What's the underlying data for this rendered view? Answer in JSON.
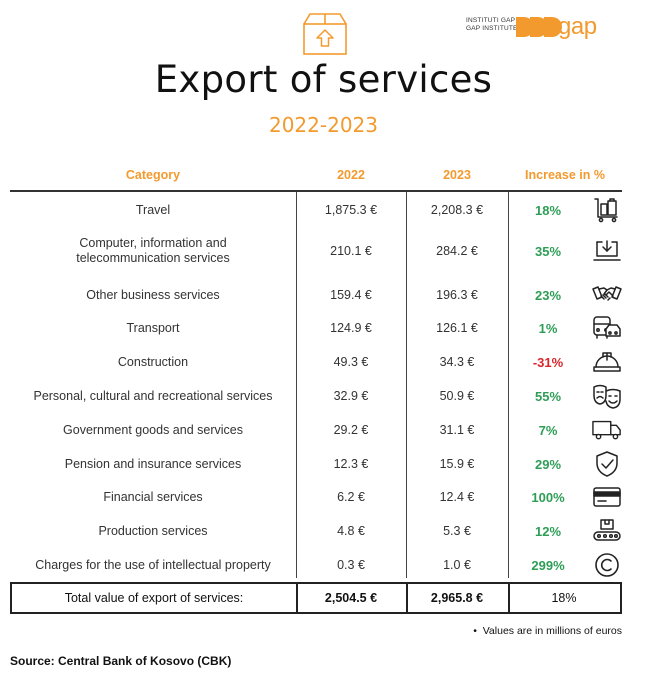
{
  "header": {
    "org_text_line1": "INSTITUTI GAP",
    "org_text_line2": "GAP INSTITUTE",
    "org_logo_text": "gap",
    "brand_color": "#f39a2e"
  },
  "title": "Export of services",
  "subtitle": "2022-2023",
  "columns": [
    "Category",
    "2022",
    "2023",
    "Increase in %"
  ],
  "rows": [
    {
      "category": "Travel",
      "v2022": "1,875.3 €",
      "v2023": "2,208.3 €",
      "increase": "18%",
      "icon": "luggage-cart-icon"
    },
    {
      "category": "Computer, information and telecommunication services",
      "v2022": "210.1 €",
      "v2023": "284.2 €",
      "increase": "35%",
      "icon": "laptop-download-icon"
    },
    {
      "category": "Other business services",
      "v2022": "159.4 €",
      "v2023": "196.3 €",
      "increase": "23%",
      "icon": "handshake-icon"
    },
    {
      "category": "Transport",
      "v2022": "124.9 €",
      "v2023": "126.1 €",
      "increase": "1%",
      "icon": "bus-car-icon"
    },
    {
      "category": "Construction",
      "v2022": "49.3 €",
      "v2023": "34.3 €",
      "increase": "-31%",
      "icon": "hard-hat-icon"
    },
    {
      "category": "Personal, cultural and recreational services",
      "v2022": "32.9 €",
      "v2023": "50.9 €",
      "increase": "55%",
      "icon": "theater-masks-icon"
    },
    {
      "category": "Government goods and services",
      "v2022": "29.2 €",
      "v2023": "31.1 €",
      "increase": "7%",
      "icon": "truck-icon"
    },
    {
      "category": "Pension and insurance services",
      "v2022": "12.3 €",
      "v2023": "15.9 €",
      "increase": "29%",
      "icon": "shield-check-icon"
    },
    {
      "category": "Financial services",
      "v2022": "6.2 €",
      "v2023": "12.4 €",
      "increase": "100%",
      "icon": "credit-card-icon"
    },
    {
      "category": "Production services",
      "v2022": "4.8 €",
      "v2023": "5.3 €",
      "increase": "12%",
      "icon": "conveyor-belt-icon"
    },
    {
      "category": "Charges for the use of intellectual property",
      "v2022": "0.3 €",
      "v2023": "1.0 €",
      "increase": "299%",
      "icon": "copyright-icon"
    }
  ],
  "total": {
    "label": "Total value of export of services:",
    "v2022": "2,504.5 €",
    "v2023": "2,965.8 €",
    "increase": "18%"
  },
  "note": "Values are in millions of euros",
  "source": "Source: Central Bank of Kosovo (CBK)",
  "colors": {
    "positive": "#2e9e57",
    "negative": "#d9262c",
    "accent": "#f39a2e"
  }
}
